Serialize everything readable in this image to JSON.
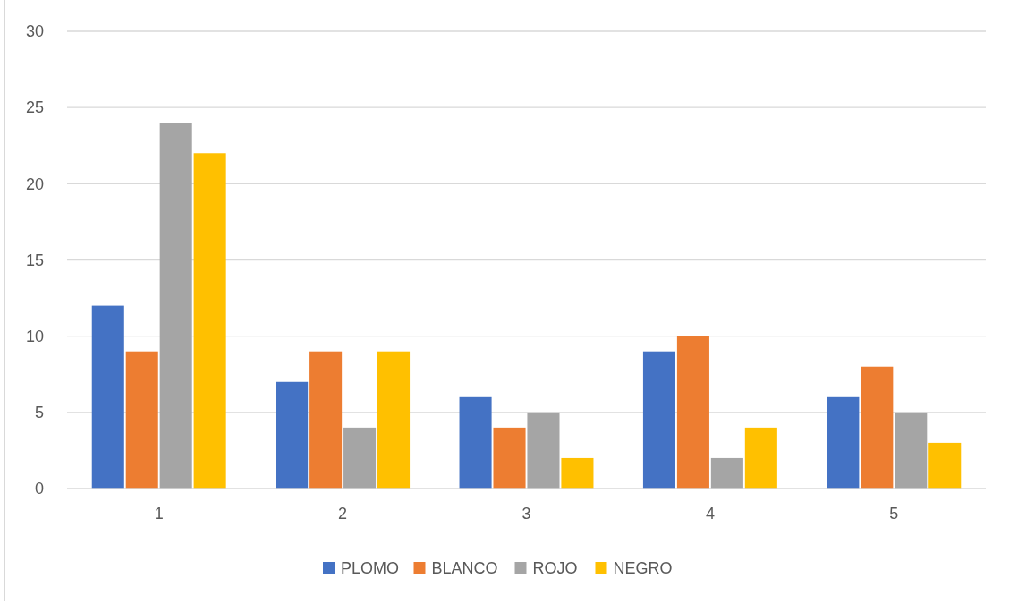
{
  "chart_data": {
    "type": "bar",
    "categories": [
      "1",
      "2",
      "3",
      "4",
      "5"
    ],
    "series": [
      {
        "name": "PLOMO",
        "color": "#4472c4",
        "values": [
          12,
          7,
          6,
          9,
          6
        ]
      },
      {
        "name": "BLANCO",
        "color": "#ed7d31",
        "values": [
          9,
          9,
          4,
          10,
          8
        ]
      },
      {
        "name": "ROJO",
        "color": "#a5a5a5",
        "values": [
          24,
          4,
          5,
          2,
          5
        ]
      },
      {
        "name": "NEGRO",
        "color": "#ffc000",
        "values": [
          22,
          9,
          2,
          4,
          3
        ]
      }
    ],
    "ylim": [
      0,
      30
    ],
    "yticks": [
      0,
      5,
      10,
      15,
      20,
      25,
      30
    ],
    "grid": "y",
    "legend": "bottom"
  }
}
